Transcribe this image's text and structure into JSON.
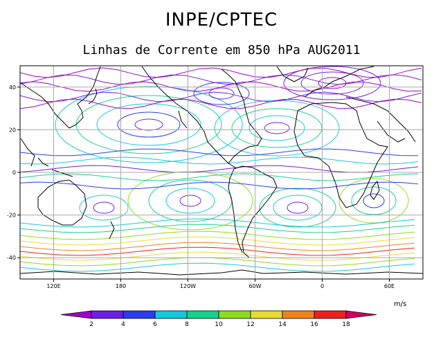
{
  "header": {
    "title": "INPE/CPTEC",
    "subtitle": "Linhas de Corrente em 850 hPa AUG2011"
  },
  "map": {
    "lat_ticks": [
      "40",
      "20",
      "0",
      "-20",
      "-40"
    ],
    "lon_ticks": [
      "120E",
      "180",
      "120W",
      "60W",
      "0",
      "60E"
    ],
    "lat_values": [
      40,
      20,
      0,
      -20,
      -40
    ],
    "lon_values": [
      120,
      180,
      240,
      300,
      360,
      420
    ],
    "lon_range": [
      90,
      450
    ],
    "lat_range": [
      -50,
      50
    ],
    "grid_color": "#a8a8a8",
    "land_color": "#000000"
  },
  "legend": {
    "units": "m/s",
    "labels": [
      "2",
      "4",
      "6",
      "8",
      "10",
      "12",
      "14",
      "16",
      "18"
    ],
    "colors": [
      "#a000c8",
      "#6e1ee6",
      "#283cf0",
      "#14c8dc",
      "#14d28c",
      "#8cdc1e",
      "#e6dc32",
      "#f0821e",
      "#f01e1e",
      "#d00060"
    ]
  }
}
